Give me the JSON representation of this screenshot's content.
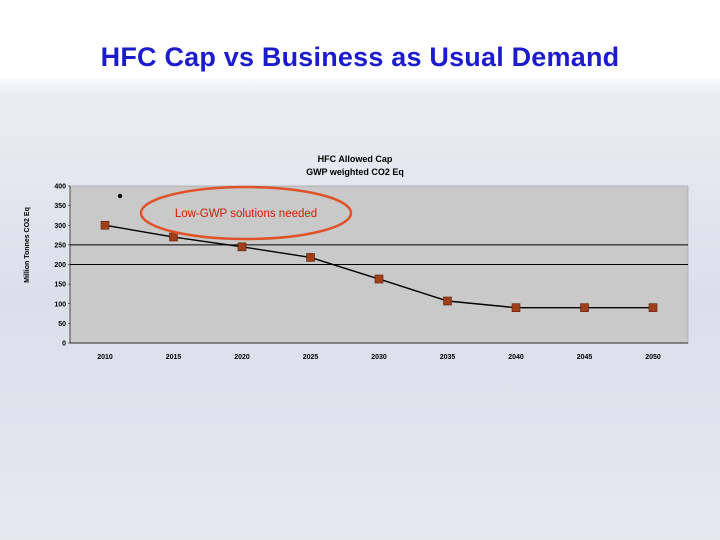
{
  "slide": {
    "title": "HFC Cap vs Business as Usual Demand"
  },
  "colors": {
    "title": "#1c1ccf",
    "plot_bg": "#c9c9c9",
    "marker": "#a0401a",
    "line": "#000000",
    "annotation": "#e0522a"
  },
  "chart_data": {
    "type": "line",
    "title_lines": [
      "HFC Allowed Cap",
      "GWP weighted CO2 Eq"
    ],
    "ylabel": "Million Tonnes CO2 Eq",
    "xlabel": "",
    "ylim": [
      0,
      400
    ],
    "yticks": [
      0,
      50,
      100,
      150,
      200,
      250,
      300,
      350,
      400
    ],
    "x": [
      "2010",
      "2015",
      "2020",
      "2025",
      "2030",
      "2035",
      "2040",
      "2045",
      "2050"
    ],
    "series": [
      {
        "values": [
          300,
          270,
          245,
          218,
          163,
          107,
          90,
          90,
          90
        ]
      }
    ],
    "reference_lines": [
      250,
      200
    ],
    "grid": false,
    "annotation": {
      "text": "Low-GWP solutions needed"
    }
  }
}
